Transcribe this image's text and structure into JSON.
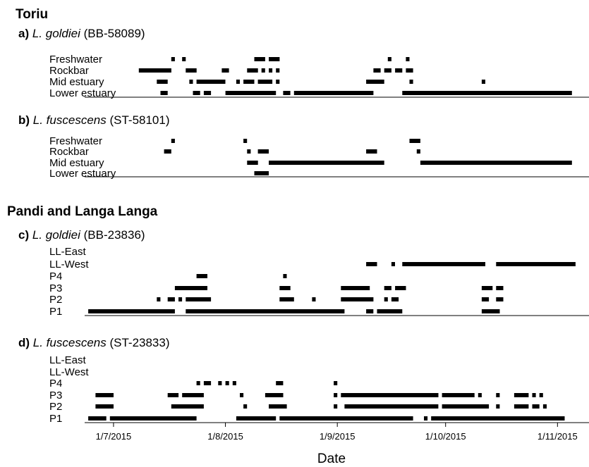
{
  "chart_data": {
    "type": "gantt",
    "x_axis": {
      "label": "Date",
      "ticks": [
        "1/7/2015",
        "1/8/2015",
        "1/9/2015",
        "1/10/2015",
        "1/11/2015"
      ],
      "range": [
        "2015-06-23",
        "2015-11-16"
      ]
    },
    "sections": [
      {
        "title": "Toriu",
        "panels": [
          {
            "letter": "a)",
            "species": "L. goldiei",
            "tag": "(BB-58089)",
            "rows": [
              {
                "name": "Freshwater",
                "segments": [
                  [
                    "2015-07-17",
                    "2015-07-18"
                  ],
                  [
                    "2015-07-20",
                    "2015-07-21"
                  ],
                  [
                    "2015-08-09",
                    "2015-08-12"
                  ],
                  [
                    "2015-08-13",
                    "2015-08-16"
                  ],
                  [
                    "2015-09-15",
                    "2015-09-16"
                  ],
                  [
                    "2015-09-20",
                    "2015-09-21"
                  ]
                ]
              },
              {
                "name": "Rockbar",
                "segments": [
                  [
                    "2015-07-08",
                    "2015-07-17"
                  ],
                  [
                    "2015-07-21",
                    "2015-07-24"
                  ],
                  [
                    "2015-07-31",
                    "2015-08-02"
                  ],
                  [
                    "2015-08-07",
                    "2015-08-10"
                  ],
                  [
                    "2015-08-11",
                    "2015-08-12"
                  ],
                  [
                    "2015-08-13",
                    "2015-08-14"
                  ],
                  [
                    "2015-08-15",
                    "2015-08-16"
                  ],
                  [
                    "2015-09-11",
                    "2015-09-13"
                  ],
                  [
                    "2015-09-14",
                    "2015-09-16"
                  ],
                  [
                    "2015-09-17",
                    "2015-09-19"
                  ],
                  [
                    "2015-09-20",
                    "2015-09-22"
                  ]
                ]
              },
              {
                "name": "Mid estuary",
                "segments": [
                  [
                    "2015-07-13",
                    "2015-07-16"
                  ],
                  [
                    "2015-07-22",
                    "2015-07-23"
                  ],
                  [
                    "2015-07-24",
                    "2015-08-01"
                  ],
                  [
                    "2015-08-04",
                    "2015-08-05"
                  ],
                  [
                    "2015-08-06",
                    "2015-08-09"
                  ],
                  [
                    "2015-08-10",
                    "2015-08-14"
                  ],
                  [
                    "2015-08-15",
                    "2015-08-16"
                  ],
                  [
                    "2015-09-09",
                    "2015-09-14"
                  ],
                  [
                    "2015-09-21",
                    "2015-09-22"
                  ],
                  [
                    "2015-10-11",
                    "2015-10-12"
                  ]
                ]
              },
              {
                "name": "Lower estuary",
                "segments": [
                  [
                    "2015-07-14",
                    "2015-07-16"
                  ],
                  [
                    "2015-07-23",
                    "2015-07-25"
                  ],
                  [
                    "2015-07-26",
                    "2015-07-28"
                  ],
                  [
                    "2015-08-01",
                    "2015-08-15"
                  ],
                  [
                    "2015-08-17",
                    "2015-08-19"
                  ],
                  [
                    "2015-08-20",
                    "2015-09-11"
                  ],
                  [
                    "2015-09-19",
                    "2015-11-05"
                  ]
                ]
              }
            ]
          },
          {
            "letter": "b)",
            "species": "L. fuscescens",
            "tag": "(ST-58101)",
            "rows": [
              {
                "name": "Freshwater",
                "segments": [
                  [
                    "2015-07-17",
                    "2015-07-18"
                  ],
                  [
                    "2015-08-06",
                    "2015-08-07"
                  ],
                  [
                    "2015-09-21",
                    "2015-09-24"
                  ]
                ]
              },
              {
                "name": "Rockbar",
                "segments": [
                  [
                    "2015-07-15",
                    "2015-07-17"
                  ],
                  [
                    "2015-08-07",
                    "2015-08-08"
                  ],
                  [
                    "2015-08-10",
                    "2015-08-13"
                  ],
                  [
                    "2015-09-09",
                    "2015-09-12"
                  ],
                  [
                    "2015-09-23",
                    "2015-09-24"
                  ]
                ]
              },
              {
                "name": "Mid estuary",
                "segments": [
                  [
                    "2015-08-07",
                    "2015-08-10"
                  ],
                  [
                    "2015-08-13",
                    "2015-09-14"
                  ],
                  [
                    "2015-09-24",
                    "2015-11-05"
                  ]
                ]
              },
              {
                "name": "Lower estuary",
                "segments": [
                  [
                    "2015-08-09",
                    "2015-08-13"
                  ]
                ]
              }
            ]
          }
        ]
      },
      {
        "title": "Pandi and Langa Langa",
        "panels": [
          {
            "letter": "c)",
            "species": "L. goldiei",
            "tag": "(BB-23836)",
            "rows": [
              {
                "name": "LL-East",
                "segments": []
              },
              {
                "name": "LL-West",
                "segments": [
                  [
                    "2015-09-09",
                    "2015-09-12"
                  ],
                  [
                    "2015-09-16",
                    "2015-09-17"
                  ],
                  [
                    "2015-09-19",
                    "2015-10-12"
                  ],
                  [
                    "2015-10-15",
                    "2015-11-06"
                  ]
                ]
              },
              {
                "name": "P4",
                "segments": [
                  [
                    "2015-07-24",
                    "2015-07-27"
                  ],
                  [
                    "2015-08-17",
                    "2015-08-18"
                  ]
                ]
              },
              {
                "name": "P3",
                "segments": [
                  [
                    "2015-07-18",
                    "2015-07-27"
                  ],
                  [
                    "2015-08-16",
                    "2015-08-19"
                  ],
                  [
                    "2015-09-02",
                    "2015-09-10"
                  ],
                  [
                    "2015-09-14",
                    "2015-09-16"
                  ],
                  [
                    "2015-09-17",
                    "2015-09-20"
                  ],
                  [
                    "2015-10-11",
                    "2015-10-14"
                  ],
                  [
                    "2015-10-15",
                    "2015-10-17"
                  ]
                ]
              },
              {
                "name": "P2",
                "segments": [
                  [
                    "2015-07-13",
                    "2015-07-14"
                  ],
                  [
                    "2015-07-16",
                    "2015-07-18"
                  ],
                  [
                    "2015-07-19",
                    "2015-07-20"
                  ],
                  [
                    "2015-07-21",
                    "2015-07-28"
                  ],
                  [
                    "2015-08-16",
                    "2015-08-20"
                  ],
                  [
                    "2015-08-25",
                    "2015-08-26"
                  ],
                  [
                    "2015-09-02",
                    "2015-09-11"
                  ],
                  [
                    "2015-09-14",
                    "2015-09-15"
                  ],
                  [
                    "2015-09-16",
                    "2015-09-18"
                  ],
                  [
                    "2015-10-11",
                    "2015-10-13"
                  ],
                  [
                    "2015-10-15",
                    "2015-10-17"
                  ]
                ]
              },
              {
                "name": "P1",
                "segments": [
                  [
                    "2015-06-24",
                    "2015-07-18"
                  ],
                  [
                    "2015-07-21",
                    "2015-09-03"
                  ],
                  [
                    "2015-09-09",
                    "2015-09-11"
                  ],
                  [
                    "2015-09-12",
                    "2015-09-19"
                  ],
                  [
                    "2015-10-11",
                    "2015-10-16"
                  ]
                ]
              }
            ]
          },
          {
            "letter": "d)",
            "species": "L. fuscescens",
            "tag": "(ST-23833)",
            "rows": [
              {
                "name": "LL-East",
                "segments": []
              },
              {
                "name": "LL-West",
                "segments": []
              },
              {
                "name": "P4",
                "segments": [
                  [
                    "2015-07-24",
                    "2015-07-25"
                  ],
                  [
                    "2015-07-26",
                    "2015-07-28"
                  ],
                  [
                    "2015-07-30",
                    "2015-07-31"
                  ],
                  [
                    "2015-08-01",
                    "2015-08-02"
                  ],
                  [
                    "2015-08-03",
                    "2015-08-04"
                  ],
                  [
                    "2015-08-15",
                    "2015-08-17"
                  ],
                  [
                    "2015-08-31",
                    "2015-09-01"
                  ]
                ]
              },
              {
                "name": "P3",
                "segments": [
                  [
                    "2015-06-26",
                    "2015-07-01"
                  ],
                  [
                    "2015-07-16",
                    "2015-07-19"
                  ],
                  [
                    "2015-07-20",
                    "2015-07-26"
                  ],
                  [
                    "2015-08-05",
                    "2015-08-06"
                  ],
                  [
                    "2015-08-12",
                    "2015-08-17"
                  ],
                  [
                    "2015-08-31",
                    "2015-09-01"
                  ],
                  [
                    "2015-09-02",
                    "2015-09-29"
                  ],
                  [
                    "2015-09-30",
                    "2015-10-09"
                  ],
                  [
                    "2015-10-10",
                    "2015-10-11"
                  ],
                  [
                    "2015-10-15",
                    "2015-10-16"
                  ],
                  [
                    "2015-10-20",
                    "2015-10-24"
                  ],
                  [
                    "2015-10-25",
                    "2015-10-26"
                  ],
                  [
                    "2015-10-27",
                    "2015-10-28"
                  ]
                ]
              },
              {
                "name": "P2",
                "segments": [
                  [
                    "2015-06-26",
                    "2015-07-01"
                  ],
                  [
                    "2015-07-17",
                    "2015-07-26"
                  ],
                  [
                    "2015-08-06",
                    "2015-08-07"
                  ],
                  [
                    "2015-08-13",
                    "2015-08-18"
                  ],
                  [
                    "2015-08-31",
                    "2015-09-01"
                  ],
                  [
                    "2015-09-03",
                    "2015-09-29"
                  ],
                  [
                    "2015-09-30",
                    "2015-10-13"
                  ],
                  [
                    "2015-10-15",
                    "2015-10-16"
                  ],
                  [
                    "2015-10-20",
                    "2015-10-24"
                  ],
                  [
                    "2015-10-25",
                    "2015-10-27"
                  ],
                  [
                    "2015-10-28",
                    "2015-10-29"
                  ]
                ]
              },
              {
                "name": "P1",
                "segments": [
                  [
                    "2015-06-24",
                    "2015-06-29"
                  ],
                  [
                    "2015-06-30",
                    "2015-07-24"
                  ],
                  [
                    "2015-08-04",
                    "2015-08-15"
                  ],
                  [
                    "2015-08-16",
                    "2015-09-22"
                  ],
                  [
                    "2015-09-25",
                    "2015-09-26"
                  ],
                  [
                    "2015-09-27",
                    "2015-11-03"
                  ]
                ]
              }
            ]
          }
        ]
      }
    ]
  }
}
